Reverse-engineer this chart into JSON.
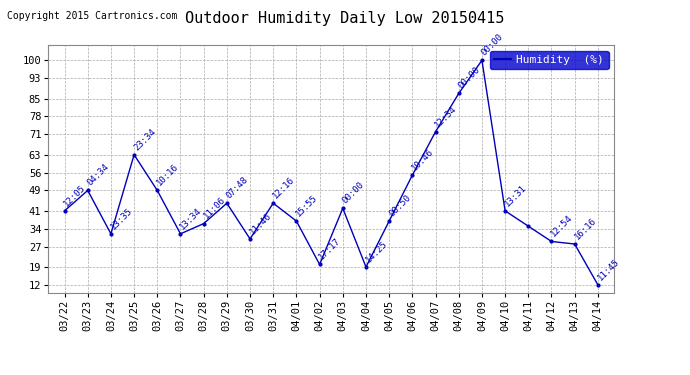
{
  "title": "Outdoor Humidity Daily Low 20150415",
  "copyright": "Copyright 2015 Cartronics.com",
  "legend_label": "Humidity  (%)",
  "x_labels": [
    "03/22",
    "03/23",
    "03/24",
    "03/25",
    "03/26",
    "03/27",
    "03/28",
    "03/29",
    "03/30",
    "03/31",
    "04/01",
    "04/02",
    "04/03",
    "04/04",
    "04/05",
    "04/06",
    "04/07",
    "04/08",
    "04/09",
    "04/10",
    "04/11",
    "04/12",
    "04/13",
    "04/14"
  ],
  "y_values": [
    41,
    49,
    32,
    63,
    49,
    32,
    36,
    44,
    30,
    44,
    37,
    20,
    42,
    19,
    37,
    55,
    72,
    87,
    100,
    41,
    35,
    29,
    28,
    12
  ],
  "point_labels": [
    "12:05",
    "04:34",
    "13:35",
    "23:34",
    "10:16",
    "13:34",
    "11:06",
    "07:48",
    "11:46",
    "12:16",
    "15:55",
    "17:17",
    "00:00",
    "14:25",
    "00:50",
    "10:46",
    "12:34",
    "00:00",
    "00:00",
    "13:31",
    "",
    "12:54",
    "16:16",
    "11:45"
  ],
  "line_color": "#0000bb",
  "marker_color": "#0000bb",
  "bg_color": "#ffffff",
  "grid_color": "#aaaaaa",
  "yticks": [
    12,
    19,
    27,
    34,
    41,
    49,
    56,
    63,
    71,
    78,
    85,
    93,
    100
  ],
  "ylim": [
    9,
    106
  ],
  "xlim": [
    -0.7,
    23.7
  ],
  "title_fontsize": 11,
  "axis_label_fontsize": 7.5,
  "point_label_fontsize": 6.5,
  "copyright_fontsize": 7,
  "legend_fontsize": 8
}
